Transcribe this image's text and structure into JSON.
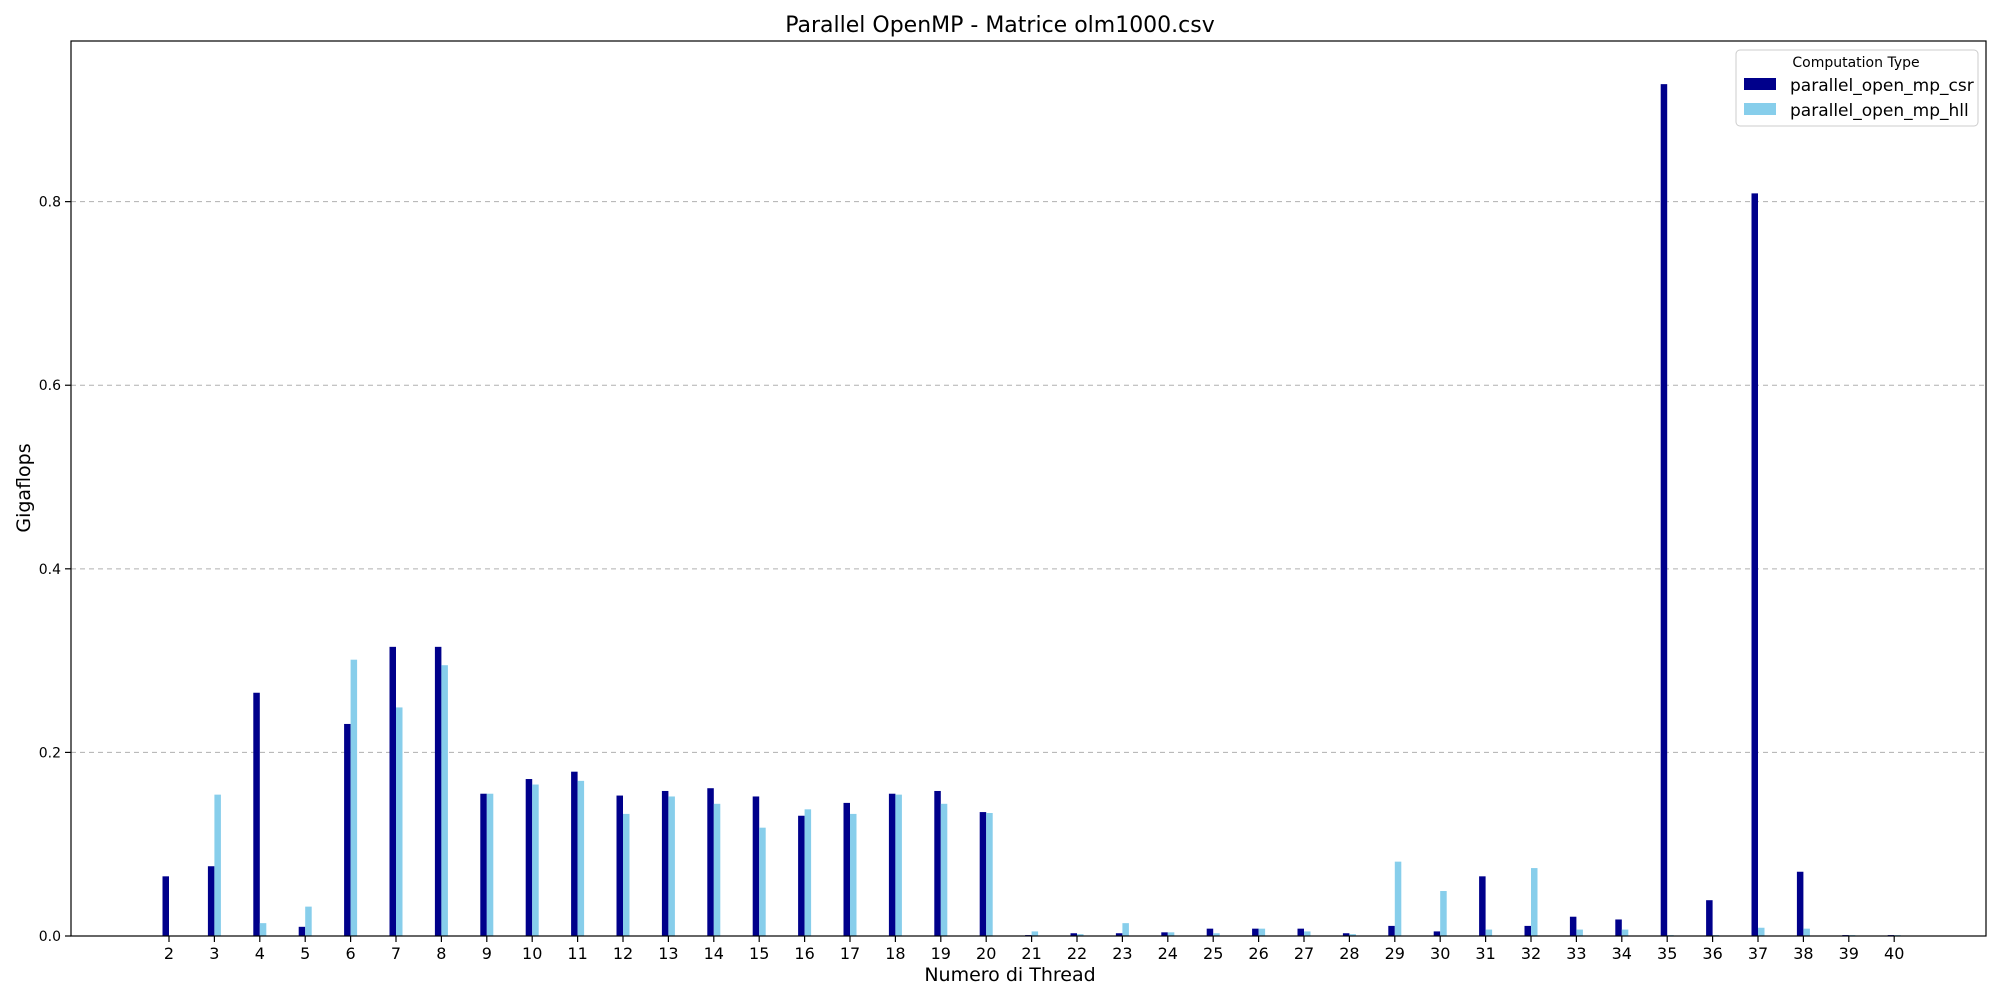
{
  "chart_data": {
    "type": "bar",
    "title": "Parallel OpenMP - Matrice olm1000.csv",
    "xlabel": "Numero di Thread",
    "ylabel": "Gigaflops",
    "categories": [
      "2",
      "3",
      "4",
      "5",
      "6",
      "7",
      "8",
      "9",
      "10",
      "11",
      "12",
      "13",
      "14",
      "15",
      "16",
      "17",
      "18",
      "19",
      "20",
      "21",
      "22",
      "23",
      "24",
      "25",
      "26",
      "27",
      "28",
      "29",
      "30",
      "31",
      "32",
      "33",
      "34",
      "35",
      "36",
      "37",
      "38",
      "39",
      "40"
    ],
    "series": [
      {
        "name": "parallel_open_mp_csr",
        "color": "#00008b",
        "values": [
          0.065,
          0.076,
          0.265,
          0.01,
          0.231,
          0.315,
          0.315,
          0.155,
          0.171,
          0.179,
          0.153,
          0.158,
          0.161,
          0.152,
          0.131,
          0.145,
          0.155,
          0.158,
          0.135,
          0.001,
          0.003,
          0.003,
          0.004,
          0.008,
          0.008,
          0.008,
          0.003,
          0.011,
          0.005,
          0.065,
          0.011,
          0.021,
          0.018,
          0.928,
          0.039,
          0.809,
          0.07,
          0.001,
          0.001
        ]
      },
      {
        "name": "parallel_open_mp_hll",
        "color": "#87ceeb",
        "values": [
          null,
          0.154,
          0.014,
          0.032,
          0.301,
          0.249,
          0.295,
          0.155,
          0.165,
          0.169,
          0.133,
          0.152,
          0.144,
          0.118,
          0.138,
          0.133,
          0.154,
          0.144,
          0.134,
          0.005,
          0.002,
          0.014,
          0.004,
          0.003,
          0.008,
          0.005,
          0.002,
          0.081,
          0.049,
          0.007,
          0.074,
          0.007,
          0.007,
          0.001,
          0.001,
          0.009,
          0.008,
          0.001,
          0.001
        ]
      }
    ],
    "yticks": [
      0.0,
      0.2,
      0.4,
      0.6,
      0.8
    ],
    "ytick_labels": [
      "0.0",
      "0.2",
      "0.4",
      "0.6",
      "0.8"
    ],
    "ylim": [
      0,
      0.975
    ],
    "grid": "y-dashed",
    "legend": {
      "title": "Computation Type",
      "placement": "top-right"
    }
  }
}
